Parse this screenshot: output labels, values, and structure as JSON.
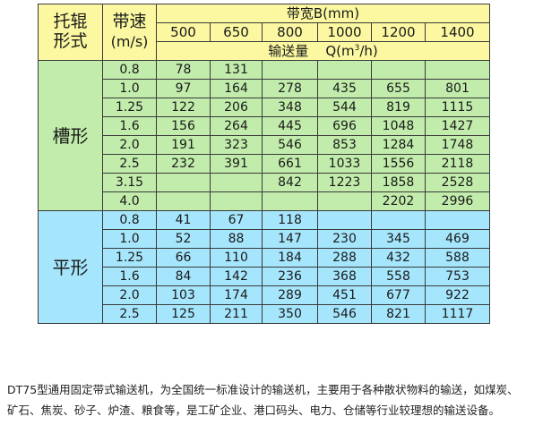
{
  "header": {
    "roller_type": [
      "托辊",
      "形式"
    ],
    "speed": [
      "带速",
      "(m/s)"
    ],
    "belt_width_title": "带宽B(mm)",
    "widths": [
      "500",
      "650",
      "800",
      "1000",
      "1200",
      "1400"
    ],
    "capacity_label": "输送量",
    "capacity_symbol": "Q(m",
    "capacity_sup": "3",
    "capacity_tail": "/h)"
  },
  "groups": [
    {
      "label": "槽形",
      "rows": [
        {
          "speed": "0.8",
          "values": [
            "78",
            "131",
            "",
            "",
            "",
            ""
          ]
        },
        {
          "speed": "1.0",
          "values": [
            "97",
            "164",
            "278",
            "435",
            "655",
            "801"
          ]
        },
        {
          "speed": "1.25",
          "values": [
            "122",
            "206",
            "348",
            "544",
            "819",
            "1115"
          ]
        },
        {
          "speed": "1.6",
          "values": [
            "156",
            "264",
            "445",
            "696",
            "1048",
            "1427"
          ]
        },
        {
          "speed": "2.0",
          "values": [
            "191",
            "323",
            "546",
            "853",
            "1284",
            "1748"
          ]
        },
        {
          "speed": "2.5",
          "values": [
            "232",
            "391",
            "661",
            "1033",
            "1556",
            "2118"
          ]
        },
        {
          "speed": "3.15",
          "values": [
            "",
            "",
            "842",
            "1223",
            "1858",
            "2528"
          ]
        },
        {
          "speed": "4.0",
          "values": [
            "",
            "",
            "",
            "",
            "2202",
            "2996"
          ]
        }
      ]
    },
    {
      "label": "平形",
      "rows": [
        {
          "speed": "0.8",
          "values": [
            "41",
            "67",
            "118",
            "",
            "",
            ""
          ]
        },
        {
          "speed": "1.0",
          "values": [
            "52",
            "88",
            "147",
            "230",
            "345",
            "469"
          ]
        },
        {
          "speed": "1.25",
          "values": [
            "66",
            "110",
            "184",
            "288",
            "432",
            "588"
          ]
        },
        {
          "speed": "1.6",
          "values": [
            "84",
            "142",
            "236",
            "368",
            "558",
            "753"
          ]
        },
        {
          "speed": "2.0",
          "values": [
            "103",
            "174",
            "289",
            "451",
            "677",
            "922"
          ]
        },
        {
          "speed": "2.5",
          "values": [
            "125",
            "211",
            "350",
            "546",
            "821",
            "1117"
          ]
        }
      ]
    }
  ],
  "description": [
    "DT75型通用固定带式输送机，为全国统一标准设计的输送机，主要用于各种散状物料的输送，如煤炭、",
    "矿石、焦炭、砂子、炉渣、粮食等，是工矿企业、港口码头、电力、仓储等行业较理想的输送设备。"
  ],
  "colors": {
    "header": "#fbf8a1",
    "trough": "#c1ecab",
    "flat": "#a6e6fd",
    "border": "#3a3a3a"
  }
}
